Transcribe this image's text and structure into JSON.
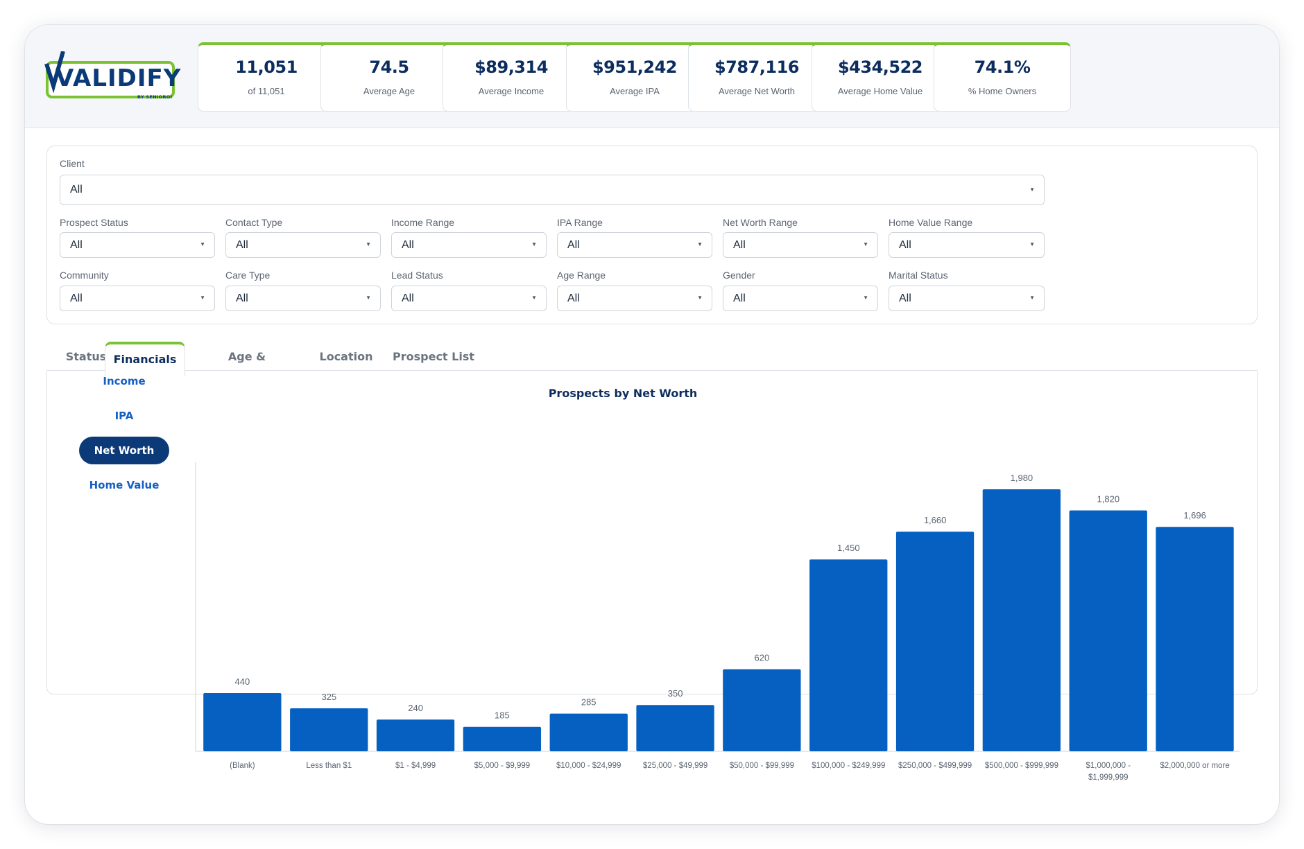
{
  "brand": {
    "name": "VALIDIFY",
    "tagline": "BY SENIOROI",
    "green": "#7ac231",
    "navy": "#0a3a78"
  },
  "kpis": [
    {
      "value": "11,051",
      "label": "of 11,051"
    },
    {
      "value": "74.5",
      "label": "Average Age"
    },
    {
      "value": "$89,314",
      "label": "Average Income"
    },
    {
      "value": "$951,242",
      "label": "Average IPA"
    },
    {
      "value": "$787,116",
      "label": "Average Net Worth"
    },
    {
      "value": "$434,522",
      "label": "Average Home Value"
    },
    {
      "value": "74.1%",
      "label": "% Home Owners"
    }
  ],
  "filters": {
    "client": {
      "label": "Client",
      "value": "All"
    },
    "row1": [
      {
        "label": "Prospect Status",
        "value": "All"
      },
      {
        "label": "Contact Type",
        "value": "All"
      },
      {
        "label": "Income Range",
        "value": "All"
      },
      {
        "label": "IPA Range",
        "value": "All"
      },
      {
        "label": "Net Worth Range",
        "value": "All"
      },
      {
        "label": "Home Value Range",
        "value": "All"
      }
    ],
    "row2": [
      {
        "label": "Community",
        "value": "All"
      },
      {
        "label": "Care Type",
        "value": "All"
      },
      {
        "label": "Lead Status",
        "value": "All"
      },
      {
        "label": "Age Range",
        "value": "All"
      },
      {
        "label": "Gender",
        "value": "All"
      },
      {
        "label": "Marital Status",
        "value": "All"
      }
    ]
  },
  "tabs": [
    {
      "label": "Status",
      "active": false
    },
    {
      "label": "Financials",
      "active": true
    },
    {
      "label": "Age & Ownership",
      "active": false
    },
    {
      "label": "Location",
      "active": false
    },
    {
      "label": "Prospect List",
      "active": false
    }
  ],
  "sidebar": [
    {
      "label": "Income",
      "active": false
    },
    {
      "label": "IPA",
      "active": false
    },
    {
      "label": "Net Worth",
      "active": true
    },
    {
      "label": "Home Value",
      "active": false
    }
  ],
  "chart_data": {
    "type": "bar",
    "title": "Prospects by Net Worth",
    "xlabel": "",
    "ylabel": "",
    "categories": [
      "(Blank)",
      "Less than $1",
      "$1 - $4,999",
      "$5,000 - $9,999",
      "$10,000 - $24,999",
      "$25,000 - $49,999",
      "$50,000 - $99,999",
      "$100,000 - $249,999",
      "$250,000 - $499,999",
      "$500,000 - $999,999",
      "$1,000,000 - $1,999,999",
      "$2,000,000 or more"
    ],
    "values": [
      440,
      325,
      240,
      185,
      285,
      350,
      620,
      1450,
      1660,
      1980,
      1820,
      1696
    ],
    "value_labels": [
      "440",
      "325",
      "240",
      "185",
      "285",
      "350",
      "620",
      "1,450",
      "1,660",
      "1,980",
      "1,820",
      "1,696"
    ],
    "ylim": [
      0,
      2200
    ],
    "bar_color": "#0560c2",
    "grid": false,
    "legend": "none"
  }
}
